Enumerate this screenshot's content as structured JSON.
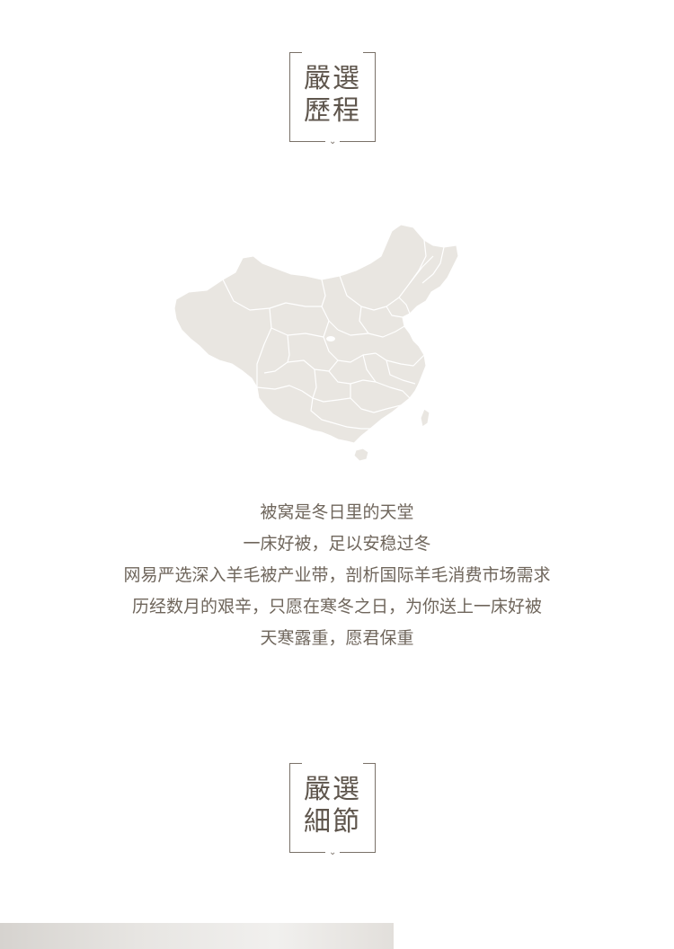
{
  "section1": {
    "line1": "嚴選",
    "line2": "歷程"
  },
  "intro": {
    "lines": [
      "被窝是冬日里的天堂",
      "一床好被，足以安稳过冬",
      "网易严选深入羊毛被产业带，剖析国际羊毛消费市场需求",
      "历经数月的艰辛，只愿在寒冬之日，为你送上一床好被",
      "天寒露重，愿君保重"
    ]
  },
  "section2": {
    "line1": "嚴選",
    "line2": "細節"
  },
  "colors": {
    "map_fill": "#e9e6e1",
    "map_border": "#ffffff",
    "ink": "#6b6258"
  }
}
